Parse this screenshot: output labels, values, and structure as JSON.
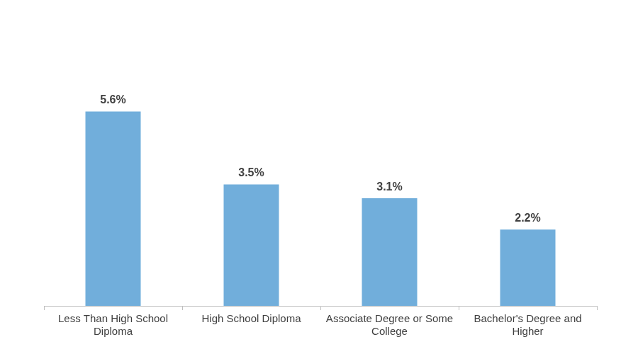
{
  "chart_data": {
    "type": "bar",
    "categories": [
      "Less Than High School Diploma",
      "High School Diploma",
      "Associate Degree or Some College",
      "Bachelor's Degree and Higher"
    ],
    "values": [
      5.6,
      3.5,
      3.1,
      2.2
    ],
    "value_labels": [
      "5.6%",
      "3.5%",
      "3.1%",
      "2.2%"
    ],
    "color": "#71aedb",
    "ylim": [
      0,
      8
    ],
    "yticks": [
      0,
      2,
      4,
      6,
      8
    ],
    "grid": false,
    "data_labels": true,
    "tick_labels": "x"
  }
}
